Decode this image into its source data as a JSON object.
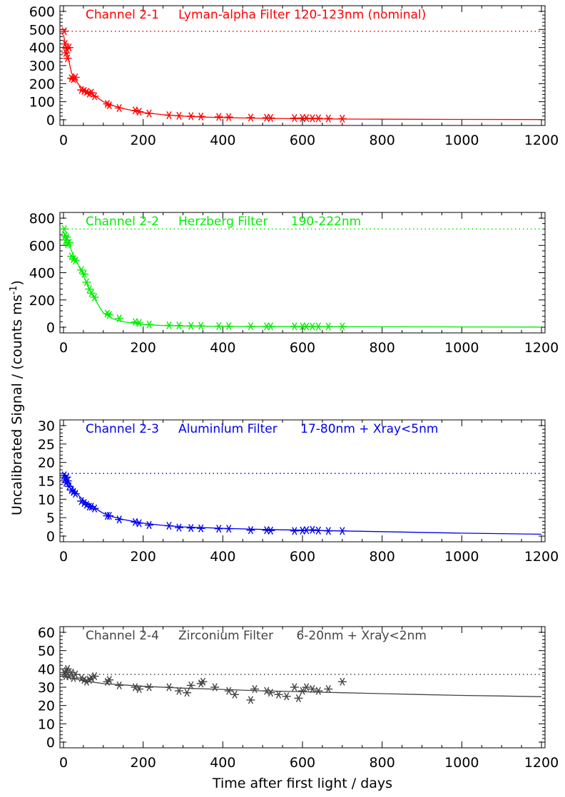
{
  "figure": {
    "ylabel": "Uncalibrated Signal / (counts ms",
    "ylabel_sup": "-1",
    "ylabel_close": ")",
    "xlabel": "Time after first light / days"
  },
  "chart_data": [
    {
      "type": "scatter",
      "title": "Channel 2-1     Lyman-alpha Filter 120-123nm (nominal)",
      "color": "#ff0000",
      "xlim": [
        0,
        1200
      ],
      "ylim": [
        0,
        600
      ],
      "xticks": [
        0,
        200,
        400,
        600,
        800,
        1000,
        1200
      ],
      "yticks": [
        0,
        100,
        200,
        300,
        400,
        500,
        600
      ],
      "reference_level": 490,
      "grid": false,
      "series": [
        {
          "kind": "measured",
          "x": [
            2,
            4,
            6,
            8,
            10,
            14,
            20,
            25,
            30,
            45,
            52,
            58,
            65,
            70,
            78,
            110,
            115,
            140,
            180,
            190,
            215,
            265,
            290,
            320,
            345,
            390,
            415,
            470,
            510,
            520,
            580,
            600,
            610,
            625,
            640,
            665,
            700
          ],
          "y": [
            490,
            420,
            370,
            395,
            340,
            400,
            230,
            225,
            235,
            165,
            160,
            155,
            145,
            150,
            130,
            88,
            80,
            65,
            52,
            45,
            35,
            25,
            22,
            20,
            18,
            16,
            15,
            12,
            11,
            10,
            9,
            10,
            9,
            8,
            8,
            7,
            6
          ]
        },
        {
          "kind": "fit",
          "x": [
            0,
            10,
            20,
            30,
            40,
            50,
            60,
            80,
            100,
            125,
            150,
            175,
            200,
            250,
            300,
            350,
            400,
            500,
            600,
            700,
            800,
            1000,
            1200
          ],
          "y": [
            470,
            360,
            260,
            220,
            190,
            170,
            155,
            130,
            100,
            78,
            62,
            50,
            40,
            28,
            20,
            15,
            12,
            8,
            6,
            4,
            3,
            2,
            1
          ]
        }
      ]
    },
    {
      "type": "scatter",
      "title": "Channel 2-2     Herzberg Filter      190-222nm",
      "color": "#00ee00",
      "xlim": [
        0,
        1200
      ],
      "ylim": [
        0,
        800
      ],
      "xticks": [
        0,
        200,
        400,
        600,
        800,
        1000,
        1200
      ],
      "yticks": [
        0,
        200,
        400,
        600,
        800
      ],
      "reference_level": 720,
      "grid": false,
      "series": [
        {
          "kind": "measured",
          "x": [
            2,
            4,
            6,
            8,
            10,
            14,
            20,
            25,
            30,
            45,
            52,
            58,
            65,
            70,
            78,
            110,
            115,
            140,
            180,
            190,
            215,
            265,
            290,
            320,
            345,
            390,
            415,
            470,
            510,
            520,
            580,
            600,
            610,
            625,
            640,
            665,
            700
          ],
          "y": [
            720,
            670,
            640,
            660,
            610,
            620,
            520,
            500,
            490,
            420,
            390,
            330,
            280,
            250,
            220,
            100,
            90,
            65,
            38,
            32,
            20,
            14,
            12,
            10,
            10,
            8,
            8,
            7,
            6,
            6,
            6,
            6,
            5,
            5,
            5,
            5,
            5
          ]
        },
        {
          "kind": "fit",
          "x": [
            0,
            10,
            20,
            30,
            40,
            50,
            60,
            70,
            80,
            90,
            100,
            125,
            150,
            200,
            250,
            300,
            400,
            600,
            800,
            1000,
            1200
          ],
          "y": [
            700,
            650,
            560,
            500,
            440,
            380,
            310,
            250,
            200,
            150,
            105,
            60,
            40,
            20,
            12,
            9,
            6,
            4,
            3,
            2,
            1
          ]
        }
      ]
    },
    {
      "type": "scatter",
      "title": "Channel 2-3     Aluminium Filter      17-80nm + Xray<5nm",
      "color": "#0000ee",
      "xlim": [
        0,
        1200
      ],
      "ylim": [
        0,
        30
      ],
      "xticks": [
        0,
        200,
        400,
        600,
        800,
        1000,
        1200
      ],
      "yticks": [
        0,
        5,
        10,
        15,
        20,
        25,
        30
      ],
      "reference_level": 17,
      "grid": false,
      "series": [
        {
          "kind": "measured",
          "x": [
            2,
            4,
            6,
            8,
            10,
            14,
            20,
            25,
            30,
            45,
            52,
            58,
            65,
            70,
            78,
            110,
            115,
            140,
            180,
            190,
            215,
            265,
            290,
            320,
            345,
            390,
            415,
            470,
            510,
            520,
            580,
            600,
            610,
            625,
            640,
            665,
            700
          ],
          "y": [
            16.5,
            15.5,
            14.5,
            16,
            15,
            13.5,
            12.5,
            12,
            11.5,
            9.5,
            9,
            8.5,
            8,
            8,
            7.5,
            5.5,
            5.5,
            4.5,
            3.8,
            3.5,
            3,
            2.8,
            2.3,
            2.2,
            2.1,
            2,
            2,
            1.6,
            1.6,
            1.5,
            1.4,
            1.5,
            1.6,
            1.7,
            1.5,
            1.4,
            1.4
          ]
        },
        {
          "kind": "fit",
          "x": [
            0,
            10,
            20,
            30,
            40,
            50,
            60,
            80,
            100,
            125,
            150,
            175,
            200,
            250,
            300,
            400,
            500,
            600,
            700,
            800,
            1000,
            1200
          ],
          "y": [
            17,
            15.5,
            13.5,
            12,
            10.8,
            9.8,
            9,
            7.5,
            6.2,
            5.2,
            4.5,
            4,
            3.5,
            2.9,
            2.5,
            2.1,
            1.8,
            1.6,
            1.4,
            1.2,
            0.8,
            0.5
          ]
        }
      ]
    },
    {
      "type": "scatter",
      "title": "Channel 2-4     Zirconium Filter      6-20nm + Xray<2nm",
      "color": "#444444",
      "xlim": [
        0,
        1200
      ],
      "ylim": [
        0,
        60
      ],
      "xticks": [
        0,
        200,
        400,
        600,
        800,
        1000,
        1200
      ],
      "yticks": [
        0,
        10,
        20,
        30,
        40,
        50,
        60
      ],
      "reference_level": 37,
      "grid": false,
      "series": [
        {
          "kind": "measured",
          "x": [
            2,
            4,
            6,
            8,
            10,
            14,
            20,
            25,
            30,
            45,
            52,
            58,
            65,
            70,
            78,
            110,
            115,
            140,
            180,
            190,
            215,
            265,
            290,
            310,
            320,
            345,
            350,
            380,
            415,
            430,
            470,
            480,
            510,
            520,
            540,
            560,
            580,
            590,
            600,
            610,
            625,
            640,
            665,
            700
          ],
          "y": [
            38,
            37,
            36,
            39,
            40,
            36,
            38,
            35,
            37,
            35,
            34,
            33,
            34,
            35,
            36,
            33,
            34,
            31,
            30,
            29,
            30,
            30,
            28,
            27,
            31,
            32,
            33,
            30,
            28,
            26,
            23,
            29,
            28,
            27,
            26,
            25,
            30,
            24,
            28,
            30,
            29,
            28,
            29,
            33
          ]
        },
        {
          "kind": "fit",
          "x": [
            0,
            20,
            50,
            100,
            200,
            300,
            400,
            500,
            600,
            700,
            800,
            900,
            1000,
            1100,
            1200
          ],
          "y": [
            36,
            35,
            33.5,
            32,
            30.5,
            29.5,
            28.8,
            28,
            27.5,
            27,
            26.5,
            26,
            25.5,
            25.2,
            24.8
          ]
        }
      ]
    }
  ]
}
